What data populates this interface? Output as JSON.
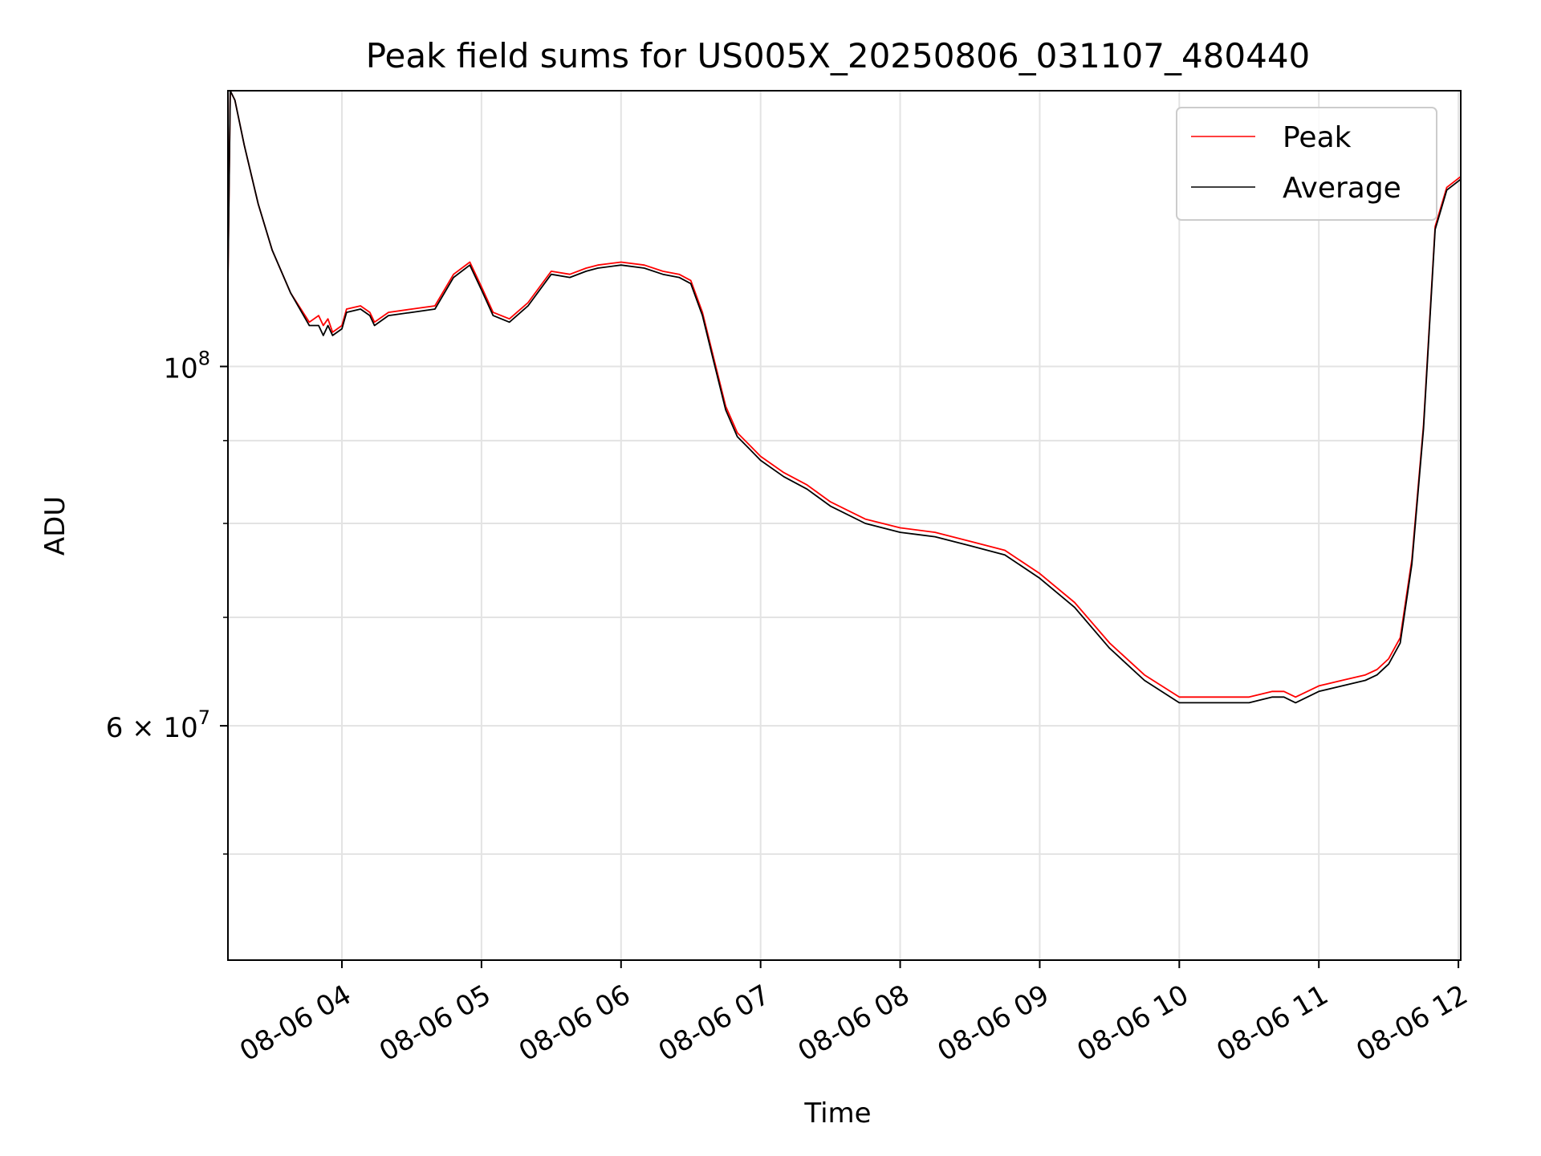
{
  "chart_data": {
    "type": "line",
    "title": "Peak field sums for US005X_20250806_031107_480440",
    "xlabel": "Time",
    "ylabel": "ADU",
    "x_ticks": [
      "08-06 04",
      "08-06 05",
      "08-06 06",
      "08-06 07",
      "08-06 08",
      "08-06 09",
      "08-06 10",
      "08-06 11",
      "08-06 12"
    ],
    "y_tick_labels": {
      "major_1e8": {
        "base": "10",
        "exp": "8"
      },
      "major_6e7": {
        "mant": "6",
        "times": "×",
        "base": "10",
        "exp": "7"
      }
    },
    "y_scale": "log",
    "ylim": [
      43000000,
      148000000
    ],
    "xlim": [
      "2025-08-06 03:11",
      "2025-08-06 12:01"
    ],
    "y_minor_ticks": [
      50000000,
      70000000,
      80000000,
      90000000,
      200000000
    ],
    "grid": true,
    "legend_position": "top-right",
    "colors": {
      "Peak": "#ff0000",
      "Average": "#000000"
    },
    "x": [
      "2025-08-06 03:11",
      "2025-08-06 03:12",
      "2025-08-06 03:14",
      "2025-08-06 03:18",
      "2025-08-06 03:24",
      "2025-08-06 03:30",
      "2025-08-06 03:38",
      "2025-08-06 03:46",
      "2025-08-06 03:50",
      "2025-08-06 03:52",
      "2025-08-06 03:54",
      "2025-08-06 03:56",
      "2025-08-06 04:00",
      "2025-08-06 04:02",
      "2025-08-06 04:08",
      "2025-08-06 04:12",
      "2025-08-06 04:14",
      "2025-08-06 04:20",
      "2025-08-06 04:30",
      "2025-08-06 04:40",
      "2025-08-06 04:48",
      "2025-08-06 04:55",
      "2025-08-06 05:00",
      "2025-08-06 05:05",
      "2025-08-06 05:12",
      "2025-08-06 05:20",
      "2025-08-06 05:30",
      "2025-08-06 05:38",
      "2025-08-06 05:45",
      "2025-08-06 05:50",
      "2025-08-06 06:00",
      "2025-08-06 06:10",
      "2025-08-06 06:18",
      "2025-08-06 06:25",
      "2025-08-06 06:30",
      "2025-08-06 06:35",
      "2025-08-06 06:40",
      "2025-08-06 06:45",
      "2025-08-06 06:50",
      "2025-08-06 06:55",
      "2025-08-06 07:00",
      "2025-08-06 07:10",
      "2025-08-06 07:20",
      "2025-08-06 07:30",
      "2025-08-06 07:45",
      "2025-08-06 08:00",
      "2025-08-06 08:15",
      "2025-08-06 08:30",
      "2025-08-06 08:45",
      "2025-08-06 09:00",
      "2025-08-06 09:15",
      "2025-08-06 09:30",
      "2025-08-06 09:45",
      "2025-08-06 10:00",
      "2025-08-06 10:15",
      "2025-08-06 10:30",
      "2025-08-06 10:40",
      "2025-08-06 10:45",
      "2025-08-06 10:50",
      "2025-08-06 11:00",
      "2025-08-06 11:10",
      "2025-08-06 11:20",
      "2025-08-06 11:25",
      "2025-08-06 11:30",
      "2025-08-06 11:35",
      "2025-08-06 11:40",
      "2025-08-06 11:45",
      "2025-08-06 11:50",
      "2025-08-06 11:55",
      "2025-08-06 12:01"
    ],
    "series": [
      {
        "name": "Peak",
        "values": [
          113000000,
          148000000,
          146000000,
          137000000,
          126000000,
          118000000,
          111000000,
          106500000,
          107500000,
          106000000,
          107000000,
          105000000,
          106000000,
          108500000,
          109000000,
          108000000,
          106500000,
          108000000,
          108500000,
          109000000,
          114000000,
          116000000,
          112000000,
          108000000,
          107000000,
          109500000,
          114500000,
          114000000,
          115000000,
          115500000,
          116000000,
          115500000,
          114500000,
          114000000,
          113000000,
          108000000,
          101000000,
          94500000,
          91000000,
          89500000,
          88000000,
          86000000,
          84500000,
          82500000,
          80500000,
          79500000,
          79000000,
          78000000,
          77000000,
          74500000,
          71500000,
          67500000,
          64500000,
          62500000,
          62500000,
          62500000,
          63000000,
          63000000,
          62500000,
          63500000,
          64000000,
          64500000,
          65000000,
          66000000,
          68000000,
          76000000,
          92000000,
          122000000,
          129000000,
          131000000
        ]
      },
      {
        "name": "Average",
        "values": [
          113000000,
          148000000,
          146000000,
          137000000,
          126000000,
          118000000,
          111000000,
          106000000,
          106000000,
          104500000,
          106000000,
          104500000,
          105500000,
          108000000,
          108500000,
          107500000,
          106000000,
          107500000,
          108000000,
          108500000,
          113500000,
          115500000,
          111500000,
          107500000,
          106500000,
          109000000,
          114000000,
          113500000,
          114500000,
          115000000,
          115500000,
          115000000,
          114000000,
          113500000,
          112500000,
          107500000,
          100500000,
          94000000,
          90500000,
          89000000,
          87500000,
          85500000,
          84000000,
          82000000,
          80000000,
          79000000,
          78500000,
          77500000,
          76500000,
          74000000,
          71000000,
          67000000,
          64000000,
          62000000,
          62000000,
          62000000,
          62500000,
          62500000,
          62000000,
          63000000,
          63500000,
          64000000,
          64500000,
          65500000,
          67500000,
          75500000,
          91500000,
          121500000,
          128500000,
          130500000
        ]
      }
    ]
  }
}
